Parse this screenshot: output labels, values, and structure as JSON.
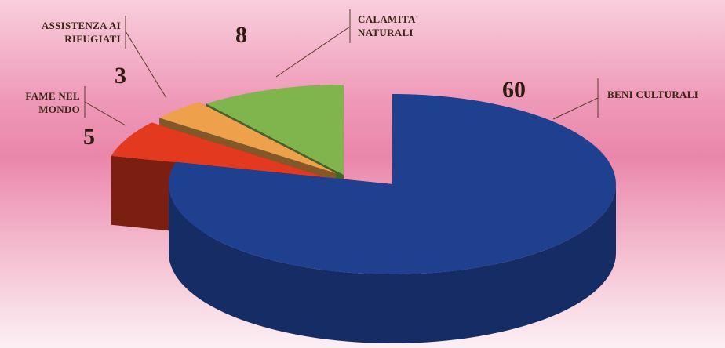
{
  "chart_data": {
    "type": "pie",
    "categories": [
      "BENI CULTURALI",
      "FAME NEL MONDO",
      "ASSISTENZA AI RIFUGIATI",
      "CALAMITA' NATURALI"
    ],
    "values": [
      60,
      5,
      3,
      8
    ],
    "colors": [
      "#1f3f8f",
      "#e2391f",
      "#eea04a",
      "#80b44c"
    ]
  }
}
